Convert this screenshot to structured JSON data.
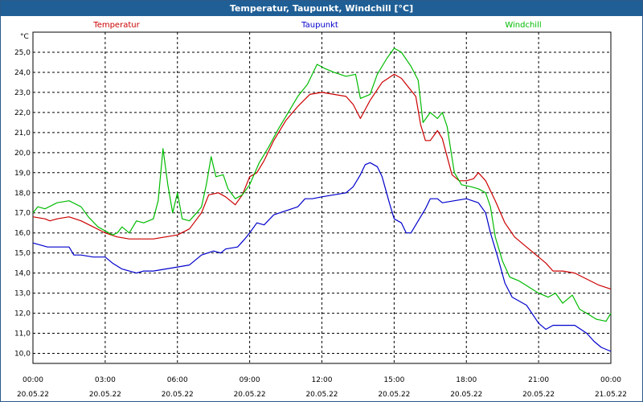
{
  "window": {
    "title": "Temperatur, Taupunkt, Windchill [°C]"
  },
  "chart_data": {
    "type": "line",
    "title": "Temperatur, Taupunkt, Windchill [°C]",
    "ylabel": "°C",
    "ylim": [
      9.5,
      26.0
    ],
    "xlim": [
      0,
      24
    ],
    "grid": true,
    "legend_position": "top",
    "y_ticks": [
      10.0,
      11.0,
      12.0,
      13.0,
      14.0,
      15.0,
      16.0,
      17.0,
      18.0,
      19.0,
      20.0,
      21.0,
      22.0,
      23.0,
      24.0,
      25.0
    ],
    "y_tick_labels": [
      "10,0",
      "11,0",
      "12,0",
      "13,0",
      "14,0",
      "15,0",
      "16,0",
      "17,0",
      "18,0",
      "19,0",
      "20,0",
      "21,0",
      "22,0",
      "23,0",
      "24,0",
      "25,0"
    ],
    "x_ticks": [
      {
        "x": 0,
        "time": "00:00",
        "date": "20.05.22"
      },
      {
        "x": 3,
        "time": "03:00",
        "date": "20.05.22"
      },
      {
        "x": 6,
        "time": "06:00",
        "date": "20.05.22"
      },
      {
        "x": 9,
        "time": "09:00",
        "date": "20.05.22"
      },
      {
        "x": 12,
        "time": "12:00",
        "date": "20.05.22"
      },
      {
        "x": 15,
        "time": "15:00",
        "date": "20.05.22"
      },
      {
        "x": 18,
        "time": "18:00",
        "date": "20.05.22"
      },
      {
        "x": 21,
        "time": "21:00",
        "date": "20.05.22"
      },
      {
        "x": 24,
        "time": "00:00",
        "date": "21.05.22"
      }
    ],
    "series": [
      {
        "name": "Temperatur",
        "color": "#cc0000",
        "points": [
          [
            0.0,
            16.8
          ],
          [
            0.5,
            16.7
          ],
          [
            0.7,
            16.6
          ],
          [
            1.0,
            16.7
          ],
          [
            1.5,
            16.8
          ],
          [
            2.0,
            16.6
          ],
          [
            2.5,
            16.3
          ],
          [
            3.0,
            16.0
          ],
          [
            3.5,
            15.8
          ],
          [
            4.0,
            15.7
          ],
          [
            4.5,
            15.7
          ],
          [
            5.0,
            15.7
          ],
          [
            5.5,
            15.8
          ],
          [
            6.0,
            15.9
          ],
          [
            6.5,
            16.2
          ],
          [
            7.0,
            17.0
          ],
          [
            7.3,
            17.9
          ],
          [
            7.7,
            18.0
          ],
          [
            8.0,
            17.8
          ],
          [
            8.4,
            17.4
          ],
          [
            8.7,
            17.9
          ],
          [
            9.0,
            18.8
          ],
          [
            9.3,
            19.0
          ],
          [
            9.6,
            19.6
          ],
          [
            10.0,
            20.6
          ],
          [
            10.5,
            21.6
          ],
          [
            11.0,
            22.3
          ],
          [
            11.5,
            22.9
          ],
          [
            12.0,
            23.0
          ],
          [
            12.5,
            22.9
          ],
          [
            13.0,
            22.8
          ],
          [
            13.3,
            22.4
          ],
          [
            13.6,
            21.7
          ],
          [
            14.0,
            22.6
          ],
          [
            14.5,
            23.5
          ],
          [
            15.0,
            23.9
          ],
          [
            15.3,
            23.7
          ],
          [
            15.7,
            23.1
          ],
          [
            15.9,
            22.8
          ],
          [
            16.1,
            21.4
          ],
          [
            16.3,
            20.6
          ],
          [
            16.5,
            20.6
          ],
          [
            16.8,
            21.1
          ],
          [
            17.0,
            20.7
          ],
          [
            17.2,
            19.8
          ],
          [
            17.4,
            18.9
          ],
          [
            17.7,
            18.6
          ],
          [
            18.0,
            18.6
          ],
          [
            18.3,
            18.7
          ],
          [
            18.5,
            19.0
          ],
          [
            18.8,
            18.6
          ],
          [
            19.2,
            17.6
          ],
          [
            19.6,
            16.5
          ],
          [
            20.0,
            15.8
          ],
          [
            20.5,
            15.3
          ],
          [
            21.0,
            14.8
          ],
          [
            21.3,
            14.5
          ],
          [
            21.6,
            14.1
          ],
          [
            22.0,
            14.1
          ],
          [
            22.5,
            14.0
          ],
          [
            23.0,
            13.7
          ],
          [
            23.5,
            13.4
          ],
          [
            24.0,
            13.2
          ]
        ]
      },
      {
        "name": "Taupunkt",
        "color": "#0000cc",
        "points": [
          [
            0.0,
            15.5
          ],
          [
            0.3,
            15.4
          ],
          [
            0.6,
            15.3
          ],
          [
            1.0,
            15.3
          ],
          [
            1.5,
            15.3
          ],
          [
            1.7,
            14.9
          ],
          [
            2.0,
            14.9
          ],
          [
            2.5,
            14.8
          ],
          [
            3.0,
            14.8
          ],
          [
            3.3,
            14.5
          ],
          [
            3.7,
            14.2
          ],
          [
            4.0,
            14.1
          ],
          [
            4.3,
            14.0
          ],
          [
            4.6,
            14.1
          ],
          [
            5.0,
            14.1
          ],
          [
            5.5,
            14.2
          ],
          [
            6.0,
            14.3
          ],
          [
            6.5,
            14.4
          ],
          [
            7.0,
            14.9
          ],
          [
            7.5,
            15.1
          ],
          [
            7.8,
            15.0
          ],
          [
            8.0,
            15.2
          ],
          [
            8.5,
            15.3
          ],
          [
            8.8,
            15.7
          ],
          [
            9.0,
            16.0
          ],
          [
            9.3,
            16.5
          ],
          [
            9.6,
            16.4
          ],
          [
            10.0,
            16.9
          ],
          [
            10.5,
            17.1
          ],
          [
            11.0,
            17.3
          ],
          [
            11.3,
            17.7
          ],
          [
            11.6,
            17.7
          ],
          [
            12.0,
            17.8
          ],
          [
            12.5,
            17.9
          ],
          [
            13.0,
            18.0
          ],
          [
            13.3,
            18.3
          ],
          [
            13.6,
            18.9
          ],
          [
            13.8,
            19.4
          ],
          [
            14.0,
            19.5
          ],
          [
            14.3,
            19.3
          ],
          [
            14.5,
            18.8
          ],
          [
            14.8,
            17.5
          ],
          [
            15.0,
            16.7
          ],
          [
            15.3,
            16.5
          ],
          [
            15.5,
            16.0
          ],
          [
            15.7,
            16.0
          ],
          [
            16.0,
            16.6
          ],
          [
            16.3,
            17.2
          ],
          [
            16.5,
            17.7
          ],
          [
            16.8,
            17.7
          ],
          [
            17.0,
            17.5
          ],
          [
            17.5,
            17.6
          ],
          [
            18.0,
            17.7
          ],
          [
            18.5,
            17.5
          ],
          [
            18.8,
            17.0
          ],
          [
            19.0,
            16.0
          ],
          [
            19.3,
            14.8
          ],
          [
            19.6,
            13.5
          ],
          [
            19.9,
            12.8
          ],
          [
            20.2,
            12.6
          ],
          [
            20.5,
            12.4
          ],
          [
            21.0,
            11.5
          ],
          [
            21.3,
            11.2
          ],
          [
            21.6,
            11.4
          ],
          [
            22.0,
            11.4
          ],
          [
            22.5,
            11.4
          ],
          [
            23.0,
            11.0
          ],
          [
            23.3,
            10.6
          ],
          [
            23.6,
            10.3
          ],
          [
            24.0,
            10.1
          ]
        ]
      },
      {
        "name": "Windchill",
        "color": "#00bb00",
        "points": [
          [
            0.0,
            17.0
          ],
          [
            0.2,
            17.3
          ],
          [
            0.5,
            17.2
          ],
          [
            1.0,
            17.5
          ],
          [
            1.5,
            17.6
          ],
          [
            2.0,
            17.3
          ],
          [
            2.3,
            16.8
          ],
          [
            2.7,
            16.3
          ],
          [
            3.0,
            16.1
          ],
          [
            3.3,
            15.9
          ],
          [
            3.5,
            16.0
          ],
          [
            3.7,
            16.3
          ],
          [
            4.0,
            16.0
          ],
          [
            4.3,
            16.6
          ],
          [
            4.6,
            16.5
          ],
          [
            5.0,
            16.7
          ],
          [
            5.2,
            17.6
          ],
          [
            5.4,
            20.2
          ],
          [
            5.6,
            18.4
          ],
          [
            5.8,
            17.0
          ],
          [
            6.0,
            18.0
          ],
          [
            6.2,
            16.7
          ],
          [
            6.5,
            16.6
          ],
          [
            6.8,
            17.0
          ],
          [
            7.0,
            17.3
          ],
          [
            7.2,
            18.4
          ],
          [
            7.4,
            19.8
          ],
          [
            7.6,
            18.8
          ],
          [
            7.9,
            18.9
          ],
          [
            8.1,
            18.2
          ],
          [
            8.4,
            17.7
          ],
          [
            8.7,
            17.9
          ],
          [
            9.0,
            18.4
          ],
          [
            9.4,
            19.5
          ],
          [
            9.8,
            20.3
          ],
          [
            10.2,
            21.2
          ],
          [
            10.6,
            22.0
          ],
          [
            11.0,
            22.8
          ],
          [
            11.4,
            23.4
          ],
          [
            11.8,
            24.4
          ],
          [
            12.1,
            24.2
          ],
          [
            12.5,
            24.0
          ],
          [
            13.0,
            23.8
          ],
          [
            13.4,
            23.9
          ],
          [
            13.6,
            22.7
          ],
          [
            14.0,
            22.9
          ],
          [
            14.3,
            23.9
          ],
          [
            14.7,
            24.7
          ],
          [
            15.0,
            25.2
          ],
          [
            15.3,
            25.0
          ],
          [
            15.7,
            24.3
          ],
          [
            16.0,
            23.6
          ],
          [
            16.2,
            21.5
          ],
          [
            16.5,
            22.0
          ],
          [
            16.8,
            21.7
          ],
          [
            17.0,
            22.0
          ],
          [
            17.2,
            21.3
          ],
          [
            17.5,
            19.0
          ],
          [
            17.8,
            18.4
          ],
          [
            18.2,
            18.3
          ],
          [
            18.5,
            18.2
          ],
          [
            18.8,
            18.0
          ],
          [
            19.0,
            17.3
          ],
          [
            19.2,
            15.8
          ],
          [
            19.5,
            14.6
          ],
          [
            19.8,
            13.8
          ],
          [
            20.2,
            13.6
          ],
          [
            20.6,
            13.3
          ],
          [
            21.0,
            13.0
          ],
          [
            21.4,
            12.8
          ],
          [
            21.7,
            13.0
          ],
          [
            22.0,
            12.5
          ],
          [
            22.4,
            12.9
          ],
          [
            22.7,
            12.2
          ],
          [
            23.0,
            12.0
          ],
          [
            23.4,
            11.7
          ],
          [
            23.8,
            11.6
          ],
          [
            24.0,
            12.0
          ]
        ]
      }
    ]
  }
}
